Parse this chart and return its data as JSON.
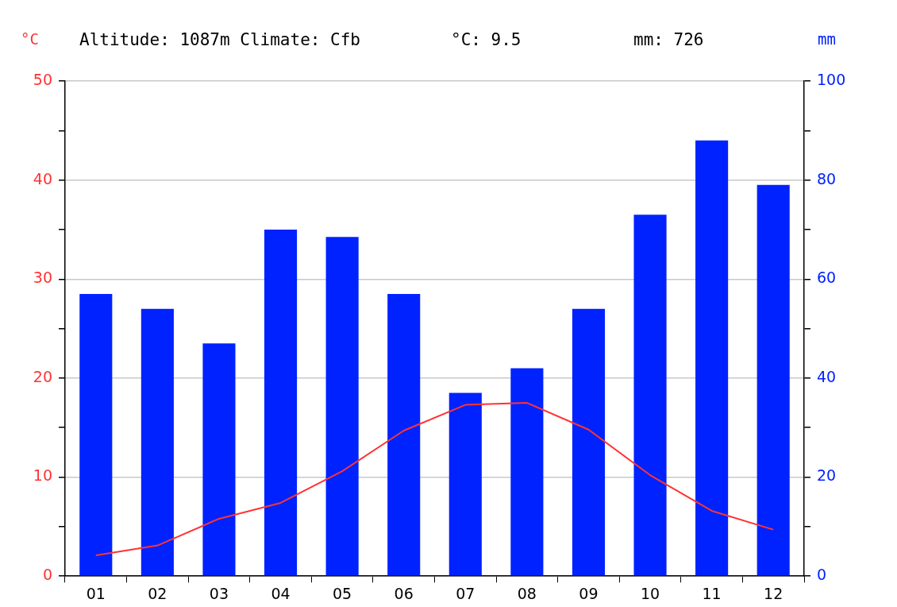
{
  "chart_data": {
    "type": "bar",
    "title": "Altitude: 1087m Climate: Cfb",
    "annotations": [
      "°C: 9.5",
      "mm: 726"
    ],
    "ylabel": "°C",
    "y2label": "mm",
    "categories": [
      "01",
      "02",
      "03",
      "04",
      "05",
      "06",
      "07",
      "08",
      "09",
      "10",
      "11",
      "12"
    ],
    "series": [
      {
        "axis": "y2",
        "color": "#0022ff",
        "values": [
          57,
          54,
          47,
          70,
          68.5,
          57,
          37,
          42,
          54,
          73,
          88,
          79
        ]
      },
      {
        "type": "line",
        "axis": "y",
        "color": "#ff3333",
        "marker": "none",
        "line_style": "solid",
        "values": [
          2.1,
          3.1,
          5.8,
          7.4,
          10.6,
          14.7,
          17.3,
          17.5,
          14.8,
          10.2,
          6.6,
          4.7
        ]
      }
    ],
    "ylim": [
      0,
      50
    ],
    "yticks": [
      0,
      {
        "value": 5,
        "label": null
      },
      10,
      {
        "value": 15,
        "label": null
      },
      20,
      {
        "value": 25,
        "label": null
      },
      30,
      {
        "value": 35,
        "label": null
      },
      40,
      {
        "value": 45,
        "label": null
      },
      50
    ],
    "y2lim": [
      0,
      100
    ],
    "y2ticks": [
      0,
      {
        "value": 10,
        "label": null
      },
      20,
      {
        "value": 30,
        "label": null
      },
      40,
      {
        "value": 50,
        "label": null
      },
      60,
      {
        "value": 70,
        "label": null
      },
      80,
      {
        "value": 90,
        "label": null
      },
      100
    ],
    "grid": "y"
  }
}
